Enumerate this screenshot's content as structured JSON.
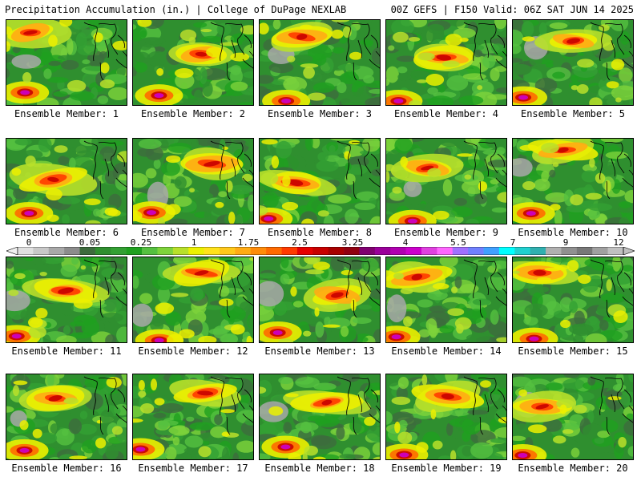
{
  "header": {
    "left_title": "Precipitation Accumulation (in.) | College of DuPage NEXLAB",
    "right_title": "00Z GEFS | F150 Valid: 06Z SAT JUN 14 2025"
  },
  "colorbar": {
    "tick_labels": [
      "0",
      "0.05",
      "0.25",
      "1",
      "1.75",
      "2.5",
      "3.25",
      "4",
      "5.5",
      "7",
      "9",
      "12"
    ],
    "colors": [
      "#e0e0e0",
      "#c8c8c8",
      "#a8a8a8",
      "#8c8c8c",
      "#3d6b3d",
      "#2f8f2f",
      "#33a033",
      "#1fa01f",
      "#55c040",
      "#7ed33b",
      "#b8e02a",
      "#ecf000",
      "#ffe21a",
      "#ffc81a",
      "#ffab14",
      "#ff8c0a",
      "#ff6a00",
      "#ff3a00",
      "#e60000",
      "#c80000",
      "#a80000",
      "#900010",
      "#800070",
      "#9a009a",
      "#b000b0",
      "#cc00cc",
      "#e040e0",
      "#ff66ff",
      "#a070ff",
      "#7080ff",
      "#40a0ff",
      "#00ffff",
      "#20d0d0",
      "#30b0b0",
      "#b0b0b0",
      "#909090",
      "#787878",
      "#a0a0a0",
      "#c0c0c0"
    ]
  },
  "members": [
    {
      "label": "Ensemble Member: 1"
    },
    {
      "label": "Ensemble Member: 2"
    },
    {
      "label": "Ensemble Member: 3"
    },
    {
      "label": "Ensemble Member: 4"
    },
    {
      "label": "Ensemble Member: 5"
    },
    {
      "label": "Ensemble Member: 6"
    },
    {
      "label": "Ensemble Member: 7"
    },
    {
      "label": "Ensemble Member: 8"
    },
    {
      "label": "Ensemble Member: 9"
    },
    {
      "label": "Ensemble Member: 10"
    },
    {
      "label": "Ensemble Member: 11"
    },
    {
      "label": "Ensemble Member: 12"
    },
    {
      "label": "Ensemble Member: 13"
    },
    {
      "label": "Ensemble Member: 14"
    },
    {
      "label": "Ensemble Member: 15"
    },
    {
      "label": "Ensemble Member: 16"
    },
    {
      "label": "Ensemble Member: 17"
    },
    {
      "label": "Ensemble Member: 18"
    },
    {
      "label": "Ensemble Member: 19"
    },
    {
      "label": "Ensemble Member: 20"
    }
  ]
}
